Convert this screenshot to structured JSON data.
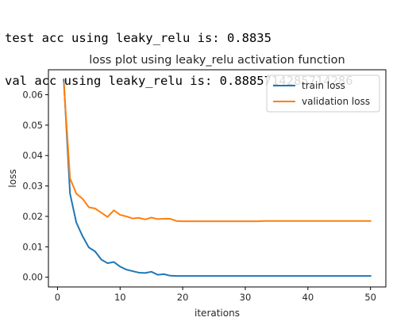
{
  "output": {
    "lines": [
      "test acc using leaky_relu is: 0.8835",
      "val acc using leaky_relu is: 0.8885714285714286"
    ]
  },
  "chart_data": {
    "type": "line",
    "title": "loss plot using leaky_relu activation function",
    "xlabel": "iterations",
    "ylabel": "loss",
    "xlim": [
      -1.45,
      52.45
    ],
    "ylim": [
      -0.0032,
      0.0682
    ],
    "xticks": [
      0,
      10,
      20,
      30,
      40,
      50
    ],
    "xtick_labels": [
      "0",
      "10",
      "20",
      "30",
      "40",
      "50"
    ],
    "yticks": [
      0.0,
      0.01,
      0.02,
      0.03,
      0.04,
      0.05,
      0.06
    ],
    "ytick_labels": [
      "0.00",
      "0.01",
      "0.02",
      "0.03",
      "0.04",
      "0.05",
      "0.06"
    ],
    "grid": false,
    "legend_position": "upper right",
    "x": [
      1,
      2,
      3,
      4,
      5,
      6,
      7,
      8,
      9,
      10,
      11,
      12,
      13,
      14,
      15,
      16,
      17,
      18,
      19,
      20,
      21,
      22,
      23,
      24,
      25,
      26,
      27,
      28,
      29,
      30,
      31,
      32,
      33,
      34,
      35,
      36,
      37,
      38,
      39,
      40,
      41,
      42,
      43,
      44,
      45,
      46,
      47,
      48,
      49,
      50
    ],
    "series": [
      {
        "name": "train loss",
        "color": "#1f77b4",
        "values": [
          0.065,
          0.0275,
          0.018,
          0.0135,
          0.0098,
          0.0085,
          0.0058,
          0.0046,
          0.005,
          0.0035,
          0.0025,
          0.002,
          0.0015,
          0.0014,
          0.0018,
          0.0008,
          0.001,
          0.0005,
          0.0004,
          0.0004,
          0.0004,
          0.0004,
          0.0004,
          0.0004,
          0.0004,
          0.0004,
          0.0004,
          0.0004,
          0.0004,
          0.0004,
          0.0004,
          0.0004,
          0.0004,
          0.0004,
          0.0004,
          0.0004,
          0.0004,
          0.0004,
          0.0004,
          0.0004,
          0.0004,
          0.0004,
          0.0004,
          0.0004,
          0.0004,
          0.0004,
          0.0004,
          0.0004,
          0.0004,
          0.0004
        ]
      },
      {
        "name": "validation loss",
        "color": "#ff7f0e",
        "values": [
          0.064,
          0.0325,
          0.0275,
          0.0258,
          0.023,
          0.0226,
          0.0212,
          0.0198,
          0.022,
          0.0205,
          0.02,
          0.0193,
          0.0195,
          0.019,
          0.0196,
          0.0191,
          0.0192,
          0.0192,
          0.0185,
          0.0184,
          0.0184,
          0.0184,
          0.0184,
          0.0184,
          0.0184,
          0.0184,
          0.0184,
          0.0184,
          0.0184,
          0.0184,
          0.0184,
          0.0184,
          0.0185,
          0.0185,
          0.0185,
          0.0185,
          0.0185,
          0.0185,
          0.0185,
          0.0185,
          0.0185,
          0.0185,
          0.0185,
          0.0185,
          0.0185,
          0.0185,
          0.0185,
          0.0185,
          0.0185,
          0.0185
        ]
      }
    ]
  }
}
